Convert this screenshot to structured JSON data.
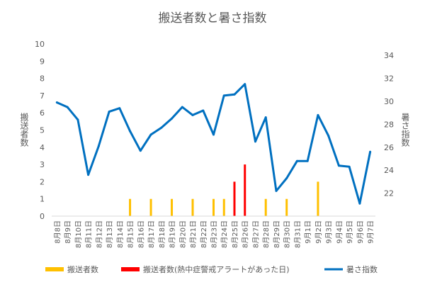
{
  "chart_data": {
    "type": "bar+line",
    "title": "搬送者数と暑さ指数",
    "ylabel_left": "搬送者数",
    "ylabel_right": "暑さ指数",
    "ylim_left": [
      0,
      10
    ],
    "ylim_right": [
      20,
      35
    ],
    "yticks_left": [
      "0",
      "1",
      "2",
      "3",
      "4",
      "5",
      "6",
      "7",
      "8",
      "9",
      "10"
    ],
    "yticks_right": [
      "22",
      "24",
      "26",
      "28",
      "30",
      "32",
      "34"
    ],
    "grid": false,
    "legend_position": "bottom",
    "categories": [
      "8月8日",
      "8月9日",
      "8月10日",
      "8月11日",
      "8月12日",
      "8月13日",
      "8月14日",
      "8月15日",
      "8月16日",
      "8月17日",
      "8月18日",
      "8月19日",
      "8月20日",
      "8月21日",
      "8月22日",
      "8月23日",
      "8月24日",
      "8月25日",
      "8月26日",
      "8月27日",
      "8月28日",
      "8月29日",
      "8月30日",
      "8月31日",
      "9月1日",
      "9月2日",
      "9月3日",
      "9月4日",
      "9月5日",
      "9月6日",
      "9月7日"
    ],
    "series": [
      {
        "name": "搬送者数",
        "type": "bar",
        "axis": "left",
        "color": "#FFC000",
        "values": [
          0,
          0,
          0,
          0,
          0,
          0,
          0,
          1,
          0,
          1,
          0,
          1,
          0,
          1,
          0,
          1,
          1,
          0,
          0,
          0,
          1,
          0,
          1,
          0,
          0,
          2,
          0,
          0,
          0,
          0,
          0
        ]
      },
      {
        "name": "搬送者数(熱中症警戒アラートがあった日)",
        "type": "bar",
        "axis": "left",
        "color": "#FF0000",
        "values": [
          0,
          0,
          0,
          0,
          0,
          0,
          0,
          0,
          0,
          0,
          0,
          0,
          0,
          0,
          0,
          0,
          0,
          2,
          3,
          0,
          0,
          0,
          0,
          0,
          0,
          0,
          0,
          0,
          0,
          0,
          0
        ]
      },
      {
        "name": "暑さ指数",
        "type": "line",
        "axis": "right",
        "color": "#0070C0",
        "values": [
          29.9,
          29.5,
          28.4,
          23.6,
          26.1,
          29.1,
          29.4,
          27.4,
          25.7,
          27.1,
          27.7,
          28.5,
          29.5,
          28.8,
          29.2,
          27.1,
          30.5,
          30.6,
          31.5,
          26.5,
          28.6,
          22.2,
          23.3,
          24.8,
          24.8,
          28.8,
          27.0,
          24.4,
          24.3,
          21.1,
          25.6
        ]
      }
    ]
  }
}
